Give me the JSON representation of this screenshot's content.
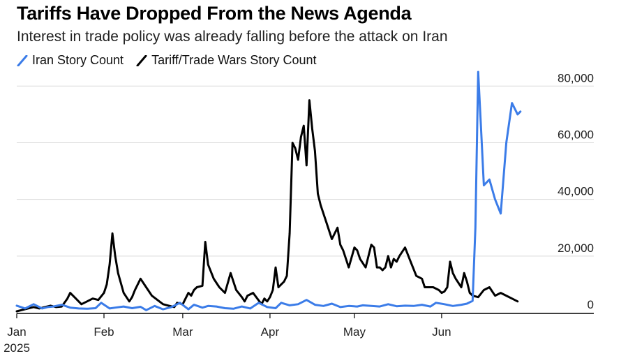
{
  "title": "Tariffs Have Dropped From the News Agenda",
  "subtitle": "Interest in trade policy was already falling before the attack on Iran",
  "legend": [
    {
      "label": "Iran Story Count",
      "color": "#3b7ce8"
    },
    {
      "label": "Tariff/Trade Wars Story Count",
      "color": "#000000"
    }
  ],
  "chart_data": {
    "type": "line",
    "title": "Tariffs Have Dropped From the News Agenda",
    "subtitle": "Interest in trade policy was already falling before the attack on Iran",
    "xlabel": "",
    "ylabel": "",
    "x_unit": "day of 2025 (0 = Jan 1)",
    "xlim": [
      0,
      185
    ],
    "ylim": [
      0,
      85000
    ],
    "y_ticks": [
      0,
      20000,
      40000,
      60000,
      80000
    ],
    "y_tick_labels": [
      "0",
      "20,000",
      "40,000",
      "60,000",
      "80,000"
    ],
    "y_axis_position": "right",
    "x_ticks": [
      0,
      31,
      59,
      90,
      120,
      151
    ],
    "x_tick_labels": [
      "Jan",
      "Feb",
      "Mar",
      "Apr",
      "May",
      "Jun"
    ],
    "x_sub_label": "2025",
    "grid": "horizontal",
    "series": [
      {
        "name": "Iran Story Count",
        "color": "#3b7ce8",
        "x": [
          0,
          3,
          6,
          9,
          11,
          13,
          16,
          19,
          22,
          25,
          28,
          30,
          33,
          35,
          38,
          41,
          44,
          46,
          49,
          52,
          55,
          58,
          61,
          63,
          66,
          68,
          71,
          74,
          77,
          80,
          83,
          86,
          89,
          92,
          94,
          97,
          100,
          103,
          106,
          109,
          112,
          115,
          118,
          121,
          123,
          126,
          129,
          132,
          135,
          138,
          141,
          144,
          147,
          149,
          152,
          155,
          158,
          160,
          162,
          163,
          164,
          165,
          166,
          168,
          170,
          172,
          174,
          176,
          178,
          179
        ],
        "values": [
          2500,
          1500,
          3000,
          1500,
          2000,
          2200,
          2800,
          1800,
          1500,
          1400,
          1600,
          3500,
          1500,
          1800,
          2200,
          1600,
          2100,
          900,
          2400,
          1200,
          2000,
          3500,
          1200,
          2800,
          1800,
          2400,
          2200,
          1600,
          1400,
          2200,
          1500,
          3500,
          2000,
          1600,
          3500,
          2600,
          3000,
          4500,
          2800,
          2400,
          3200,
          2000,
          2400,
          2200,
          2600,
          2400,
          2200,
          3000,
          2300,
          2500,
          2400,
          2800,
          2200,
          3500,
          3000,
          2400,
          2800,
          3200,
          4200,
          30000,
          85000,
          65000,
          45000,
          47000,
          40000,
          35000,
          60000,
          74000,
          70000,
          71000
        ]
      },
      {
        "name": "Tariff/Trade Wars Story Count",
        "color": "#000000",
        "x": [
          0,
          2,
          4,
          6,
          8,
          10,
          12,
          14,
          16,
          18,
          19,
          21,
          23,
          25,
          27,
          29,
          31,
          32,
          33,
          34,
          35,
          36,
          38,
          40,
          41,
          42,
          44,
          46,
          48,
          50,
          52,
          54,
          56,
          57,
          59,
          60,
          61,
          62,
          63,
          64,
          66,
          67,
          68,
          70,
          72,
          74,
          76,
          78,
          80,
          81,
          82,
          84,
          87,
          88,
          89,
          90,
          91,
          92,
          93,
          94,
          95,
          96,
          97,
          98,
          99,
          100,
          101,
          102,
          103,
          104,
          105,
          106,
          107,
          108,
          110,
          112,
          114,
          115,
          116,
          118,
          120,
          121,
          122,
          124,
          126,
          127,
          128,
          129,
          130,
          131,
          132,
          133,
          134,
          135,
          136,
          138,
          140,
          142,
          144,
          145,
          146,
          148,
          150,
          151,
          152,
          153,
          154,
          155,
          156,
          158,
          159,
          160,
          161,
          162,
          164,
          166,
          168,
          170,
          172,
          174,
          176,
          178
        ],
        "values": [
          500,
          1000,
          1500,
          2000,
          1500,
          2000,
          2500,
          2000,
          2200,
          5000,
          7000,
          5000,
          3000,
          4000,
          5000,
          4500,
          7000,
          10000,
          17000,
          28000,
          20000,
          14000,
          7000,
          4000,
          5500,
          8000,
          12000,
          9000,
          6000,
          4500,
          3000,
          2500,
          2000,
          3500,
          3000,
          5000,
          7000,
          6000,
          8000,
          9000,
          9500,
          25000,
          17000,
          12000,
          9000,
          7000,
          14000,
          8000,
          5500,
          4000,
          6000,
          7000,
          3000,
          5000,
          4000,
          5500,
          8000,
          16000,
          9000,
          10000,
          11000,
          13000,
          28000,
          60000,
          58000,
          54000,
          62000,
          66000,
          52000,
          75000,
          65000,
          57000,
          42000,
          38000,
          32000,
          26000,
          30000,
          24000,
          22000,
          16000,
          23000,
          22000,
          19000,
          16000,
          24000,
          23000,
          16000,
          16000,
          15000,
          16000,
          20000,
          16000,
          19000,
          18000,
          20000,
          23000,
          18000,
          13000,
          12000,
          9000,
          9000,
          9000,
          8000,
          7000,
          7500,
          9000,
          18000,
          14000,
          12000,
          9000,
          14000,
          11000,
          7000,
          6000,
          5500,
          8000,
          9000,
          6000,
          7000,
          6000,
          5000,
          4000
        ]
      }
    ]
  }
}
